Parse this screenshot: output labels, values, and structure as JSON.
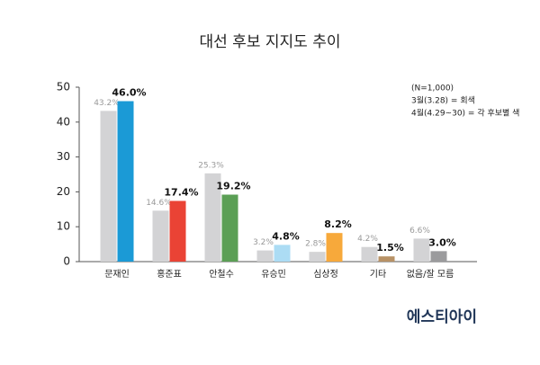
{
  "chart_data": {
    "type": "bar",
    "title": "대선 후보 지지도 추이",
    "annotations": [
      "(N=1,000)",
      "3월(3.28) = 회색",
      "4월(4.29~30) = 각 후보별 색"
    ],
    "source": "에스티아이",
    "categories": [
      "문재인",
      "홍준표",
      "안철수",
      "유승민",
      "심상정",
      "기타",
      "없음/잘 모름"
    ],
    "series": [
      {
        "color": "#d3d3d5",
        "values": [
          43.2,
          14.6,
          25.3,
          3.2,
          2.8,
          4.2,
          6.6
        ],
        "value_labels": [
          "43.2%",
          "14.6%",
          "25.3%",
          "3.2%",
          "2.8%",
          "4.2%",
          "6.6%"
        ]
      },
      {
        "colors": [
          "#1b9ad6",
          "#ea4335",
          "#5b9f55",
          "#acdcf4",
          "#f7a93b",
          "#b89266",
          "#9b9b9d"
        ],
        "values": [
          46.0,
          17.4,
          19.2,
          4.8,
          8.2,
          1.5,
          3.0
        ],
        "value_labels": [
          "46.0%",
          "17.4%",
          "19.2%",
          "4.8%",
          "8.2%",
          "1.5%",
          "3.0%"
        ]
      }
    ],
    "ylim": [
      0,
      50
    ],
    "yticks": [
      0,
      10,
      20,
      30,
      40,
      50
    ],
    "grid": false
  }
}
